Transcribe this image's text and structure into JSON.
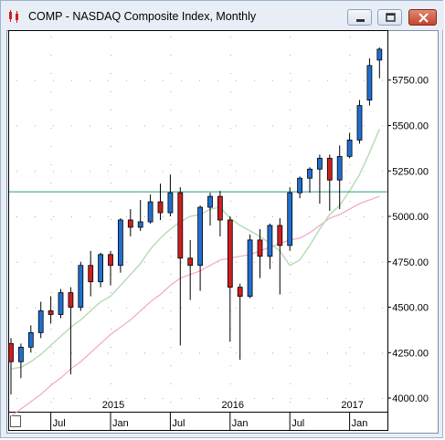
{
  "window": {
    "title": "COMP - NASDAQ Composite Index, Monthly",
    "buttons": {
      "minimize": "minimize",
      "maximize": "maximize",
      "close": "close"
    }
  },
  "colors": {
    "up": "#1f6fd1",
    "down": "#cc1f1f",
    "sma_fast": "#b9dcb9",
    "sma_slow": "#f2a6c8",
    "hline": "#2e9a8e",
    "grid_dot": "#b0b0b0"
  },
  "chart_data": {
    "type": "candlestick",
    "title": "COMP - NASDAQ Composite Index, Monthly",
    "ylim": [
      3950,
      6020
    ],
    "y_ticks": [
      "4000.00",
      "4250.00",
      "4500.00",
      "4750.00",
      "5000.00",
      "5250.00",
      "5500.00",
      "5750.00"
    ],
    "y_tick_values": [
      4000,
      4250,
      4500,
      4750,
      5000,
      5250,
      5500,
      5750
    ],
    "x_labels_top": [
      {
        "label": "2015",
        "index": 10
      },
      {
        "label": "2016",
        "index": 22
      },
      {
        "label": "2017",
        "index": 34
      }
    ],
    "x_labels_bottom": [
      {
        "label": "Jul",
        "index": 4
      },
      {
        "label": "Jan",
        "index": 10
      },
      {
        "label": "Jul",
        "index": 16
      },
      {
        "label": "Jan",
        "index": 22
      },
      {
        "label": "Jul",
        "index": 28
      },
      {
        "label": "Jan",
        "index": 34
      }
    ],
    "candles": [
      {
        "o": 4300,
        "h": 4330,
        "l": 4020,
        "c": 4200
      },
      {
        "o": 4200,
        "h": 4300,
        "l": 4110,
        "c": 4280
      },
      {
        "o": 4280,
        "h": 4400,
        "l": 4250,
        "c": 4360
      },
      {
        "o": 4360,
        "h": 4530,
        "l": 4330,
        "c": 4480
      },
      {
        "o": 4480,
        "h": 4560,
        "l": 4410,
        "c": 4460
      },
      {
        "o": 4460,
        "h": 4600,
        "l": 4440,
        "c": 4580
      },
      {
        "o": 4580,
        "h": 4610,
        "l": 4130,
        "c": 4500
      },
      {
        "o": 4500,
        "h": 4750,
        "l": 4480,
        "c": 4730
      },
      {
        "o": 4730,
        "h": 4810,
        "l": 4560,
        "c": 4640
      },
      {
        "o": 4640,
        "h": 4800,
        "l": 4610,
        "c": 4790
      },
      {
        "o": 4790,
        "h": 4810,
        "l": 4620,
        "c": 4730
      },
      {
        "o": 4730,
        "h": 4990,
        "l": 4690,
        "c": 4980
      },
      {
        "o": 4980,
        "h": 5040,
        "l": 4890,
        "c": 4940
      },
      {
        "o": 4940,
        "h": 5090,
        "l": 4920,
        "c": 4970
      },
      {
        "o": 4970,
        "h": 5120,
        "l": 4960,
        "c": 5080
      },
      {
        "o": 5080,
        "h": 5180,
        "l": 4980,
        "c": 5020
      },
      {
        "o": 5020,
        "h": 5230,
        "l": 5000,
        "c": 5130
      },
      {
        "o": 5130,
        "h": 5160,
        "l": 4290,
        "c": 4770
      },
      {
        "o": 4770,
        "h": 4870,
        "l": 4540,
        "c": 4730
      },
      {
        "o": 4730,
        "h": 5060,
        "l": 4590,
        "c": 5050
      },
      {
        "o": 5050,
        "h": 5130,
        "l": 4950,
        "c": 5110
      },
      {
        "o": 5110,
        "h": 5140,
        "l": 4890,
        "c": 4980
      },
      {
        "o": 4980,
        "h": 5000,
        "l": 4310,
        "c": 4610
      },
      {
        "o": 4610,
        "h": 4630,
        "l": 4210,
        "c": 4560
      },
      {
        "o": 4560,
        "h": 4900,
        "l": 4550,
        "c": 4870
      },
      {
        "o": 4870,
        "h": 4930,
        "l": 4660,
        "c": 4780
      },
      {
        "o": 4780,
        "h": 4960,
        "l": 4710,
        "c": 4950
      },
      {
        "o": 4950,
        "h": 4990,
        "l": 4570,
        "c": 4840
      },
      {
        "o": 4840,
        "h": 5160,
        "l": 4810,
        "c": 5130
      },
      {
        "o": 5130,
        "h": 5220,
        "l": 5100,
        "c": 5210
      },
      {
        "o": 5210,
        "h": 5270,
        "l": 5130,
        "c": 5260
      },
      {
        "o": 5260,
        "h": 5340,
        "l": 5070,
        "c": 5320
      },
      {
        "o": 5320,
        "h": 5340,
        "l": 5030,
        "c": 5200
      },
      {
        "o": 5200,
        "h": 5390,
        "l": 5040,
        "c": 5330
      },
      {
        "o": 5330,
        "h": 5460,
        "l": 5320,
        "c": 5420
      },
      {
        "o": 5420,
        "h": 5640,
        "l": 5400,
        "c": 5610
      },
      {
        "o": 5640,
        "h": 5870,
        "l": 5610,
        "c": 5830
      },
      {
        "o": 5860,
        "h": 5930,
        "l": 5760,
        "c": 5920
      }
    ],
    "sma_fast": [
      4160,
      4170,
      4200,
      4240,
      4290,
      4340,
      4390,
      4430,
      4480,
      4530,
      4560,
      4620,
      4680,
      4740,
      4820,
      4880,
      4930,
      4970,
      5000,
      5010,
      5040,
      5050,
      4990,
      4950,
      4920,
      4890,
      4850,
      4810,
      4730,
      4760,
      4840,
      4930,
      5010,
      5060,
      5140,
      5230,
      5350,
      5480
    ],
    "sma_slow": [
      3900,
      3940,
      3980,
      4020,
      4070,
      4110,
      4160,
      4200,
      4250,
      4300,
      4350,
      4390,
      4430,
      4480,
      4530,
      4570,
      4620,
      4660,
      4680,
      4700,
      4730,
      4760,
      4770,
      4780,
      4790,
      4810,
      4830,
      4850,
      4870,
      4880,
      4910,
      4950,
      4990,
      5010,
      5040,
      5070,
      5090,
      5110
    ],
    "hline": 5135
  }
}
